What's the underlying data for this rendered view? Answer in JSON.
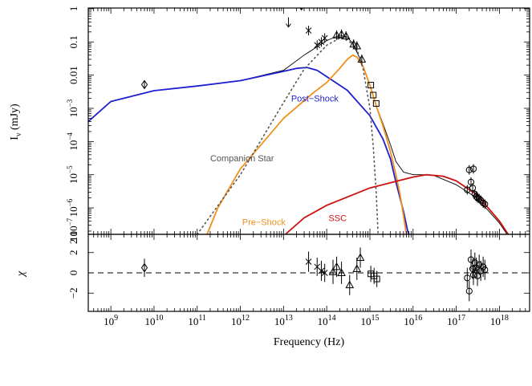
{
  "chart_data": {
    "type": "line",
    "xlabel": "Frequency (Hz)",
    "x_scale": "log",
    "xlim": [
      300000000.0,
      5e+18
    ],
    "x_ticks": [
      1000000000.0,
      10000000000.0,
      100000000000.0,
      1000000000000.0,
      10000000000000.0,
      100000000000000.0,
      1000000000000000.0,
      1e+16,
      1e+17,
      1e+18
    ],
    "x_tick_labels": [
      {
        "base": "10",
        "exp": "9"
      },
      {
        "base": "10",
        "exp": "10"
      },
      {
        "base": "10",
        "exp": "11"
      },
      {
        "base": "10",
        "exp": "12"
      },
      {
        "base": "10",
        "exp": "13"
      },
      {
        "base": "10",
        "exp": "14"
      },
      {
        "base": "10",
        "exp": "15"
      },
      {
        "base": "10",
        "exp": "16"
      },
      {
        "base": "10",
        "exp": "17"
      },
      {
        "base": "10",
        "exp": "18"
      }
    ],
    "top_panel": {
      "ylabel": {
        "main": "I",
        "sub": "ν",
        "unit": "(mJy)"
      },
      "y_scale": "log",
      "ylim": [
        1.6e-07,
        1.05
      ],
      "y_ticks": [
        1,
        0.1,
        0.01,
        0.001,
        0.0001,
        1e-05,
        1e-06,
        2e-07
      ],
      "y_tick_labels": [
        {
          "text": "1"
        },
        {
          "text": "0.1"
        },
        {
          "text": "0.01"
        },
        {
          "base": "10",
          "exp": "−3"
        },
        {
          "base": "10",
          "exp": "−4"
        },
        {
          "base": "10",
          "exp": "−5"
        },
        {
          "base": "10",
          "exp": "−6"
        },
        {
          "base": "2 10",
          "exp": "−7"
        }
      ],
      "series": [
        {
          "label": "Total",
          "color": "#000000",
          "style": "solid",
          "points": [
            [
              300000000.0,
              0.0004
            ],
            [
              1000000000.0,
              0.0016
            ],
            [
              10000000000.0,
              0.0034
            ],
            [
              100000000000.0,
              0.0047
            ],
            [
              1000000000000.0,
              0.0068
            ],
            [
              10000000000000.0,
              0.014
            ],
            [
              30000000000000.0,
              0.04
            ],
            [
              100000000000000.0,
              0.11
            ],
            [
              200000000000000.0,
              0.16
            ],
            [
              300000000000000.0,
              0.14
            ],
            [
              400000000000000.0,
              0.09
            ],
            [
              600000000000000.0,
              0.03
            ],
            [
              1000000000000000.0,
              0.005
            ],
            [
              1400000000000000.0,
              0.0012
            ],
            [
              2000000000000000.0,
              0.00035
            ],
            [
              3000000000000000.0,
              8e-05
            ],
            [
              4000000000000000.0,
              2.5e-05
            ],
            [
              6000000000000000.0,
              1.2e-05
            ],
            [
              1e+16,
              1e-05
            ],
            [
              2e+16,
              1e-05
            ],
            [
              3e+16,
              9.5e-06
            ],
            [
              1e+17,
              5e-06
            ],
            [
              3e+17,
              2e-06
            ],
            [
              1e+18,
              3.5e-07
            ],
            [
              1.5e+18,
              1.6e-07
            ]
          ]
        },
        {
          "label": "Post−Shock",
          "color": "#1f1fd0",
          "style": "solid",
          "points": [
            [
              300000000.0,
              0.0004
            ],
            [
              1000000000.0,
              0.0016
            ],
            [
              10000000000.0,
              0.0034
            ],
            [
              100000000000.0,
              0.0047
            ],
            [
              1000000000000.0,
              0.0068
            ],
            [
              10000000000000.0,
              0.013
            ],
            [
              20000000000000.0,
              0.016
            ],
            [
              35000000000000.0,
              0.017
            ],
            [
              60000000000000.0,
              0.014
            ],
            [
              100000000000000.0,
              0.009
            ],
            [
              300000000000000.0,
              0.0035
            ],
            [
              1000000000000000.0,
              0.0006
            ],
            [
              2000000000000000.0,
              0.00012
            ],
            [
              3000000000000000.0,
              3e-05
            ],
            [
              4000000000000000.0,
              6e-06
            ],
            [
              6000000000000000.0,
              8e-07
            ],
            [
              7500000000000000.0,
              2e-07
            ],
            [
              8000000000000000.0,
              1.6e-07
            ]
          ]
        },
        {
          "label": "Pre−Shock",
          "color": "#f0901a",
          "style": "solid",
          "points": [
            [
              170000000000.0,
              1.6e-07
            ],
            [
              300000000000.0,
              1e-06
            ],
            [
              1000000000000.0,
              1.5e-05
            ],
            [
              10000000000000.0,
              0.0005
            ],
            [
              50000000000000.0,
              0.003
            ],
            [
              100000000000000.0,
              0.006
            ],
            [
              200000000000000.0,
              0.016
            ],
            [
              300000000000000.0,
              0.03
            ],
            [
              400000000000000.0,
              0.04
            ],
            [
              500000000000000.0,
              0.035
            ],
            [
              700000000000000.0,
              0.018
            ],
            [
              1000000000000000.0,
              0.005
            ],
            [
              1400000000000000.0,
              0.0012
            ],
            [
              2000000000000000.0,
              0.0003
            ],
            [
              3000000000000000.0,
              5e-05
            ],
            [
              4000000000000000.0,
              1e-05
            ],
            [
              5000000000000000.0,
              2.5e-06
            ],
            [
              6000000000000000.0,
              6e-07
            ],
            [
              7000000000000000.0,
              1.6e-07
            ]
          ]
        },
        {
          "label": "Companion Star",
          "color": "#555555",
          "style": "dotted",
          "points": [
            [
              100000000000.0,
              1.6e-07
            ],
            [
              1000000000000.0,
              1e-05
            ],
            [
              10000000000000.0,
              0.0015
            ],
            [
              30000000000000.0,
              0.015
            ],
            [
              100000000000000.0,
              0.08
            ],
            [
              200000000000000.0,
              0.13
            ],
            [
              300000000000000.0,
              0.12
            ],
            [
              500000000000000.0,
              0.06
            ],
            [
              700000000000000.0,
              0.015
            ],
            [
              1000000000000000.0,
              0.001
            ],
            [
              1200000000000000.0,
              7e-05
            ],
            [
              1400000000000000.0,
              3e-06
            ],
            [
              1550000000000000.0,
              1.6e-07
            ]
          ]
        },
        {
          "label": "SSC",
          "color": "#cc1111",
          "style": "solid",
          "points": [
            [
              11000000000000.0,
              1.6e-07
            ],
            [
              30000000000000.0,
              5e-07
            ],
            [
              100000000000000.0,
              1.2e-06
            ],
            [
              1000000000000000.0,
              4e-06
            ],
            [
              1e+16,
              8.5e-06
            ],
            [
              2e+16,
              1e-05
            ],
            [
              5e+16,
              9e-06
            ],
            [
              1e+17,
              6.5e-06
            ],
            [
              3e+17,
              2.5e-06
            ],
            [
              1e+18,
              4e-07
            ],
            [
              1.6e+18,
              1.6e-07
            ]
          ]
        }
      ],
      "annotations": [
        {
          "text": "Post−Shock",
          "x": 15000000000000.0,
          "y": 0.0016,
          "color": "#1f1fd0"
        },
        {
          "text": "Companion Star",
          "x": 200000000000.0,
          "y": 2.5e-05,
          "color": "#555555"
        },
        {
          "text": "Pre−Shock",
          "x": 1100000000000.0,
          "y": 3e-07,
          "color": "#f0901a"
        },
        {
          "text": "SSC",
          "x": 110000000000000.0,
          "y": 4e-07,
          "color": "#cc1111"
        }
      ],
      "data_points": [
        {
          "marker": "diamond",
          "x": 6000000000.0,
          "y": 0.0052,
          "ylo": 0.004,
          "yhi": 0.0068
        },
        {
          "marker": "arrow",
          "x": 13000000000000.0,
          "y": 0.55
        },
        {
          "marker": "arrow",
          "x": 26000000000000.0,
          "y": 1.8
        },
        {
          "marker": "cross",
          "x": 38000000000000.0,
          "y": 0.22
        },
        {
          "marker": "cross",
          "x": 60000000000000.0,
          "y": 0.08
        },
        {
          "marker": "cross",
          "x": 75000000000000.0,
          "y": 0.1
        },
        {
          "marker": "cross",
          "x": 90000000000000.0,
          "y": 0.13
        },
        {
          "marker": "triangle",
          "x": 170000000000000.0,
          "y": 0.16
        },
        {
          "marker": "triangle",
          "x": 220000000000000.0,
          "y": 0.17
        },
        {
          "marker": "triangle",
          "x": 280000000000000.0,
          "y": 0.15
        },
        {
          "marker": "triangle",
          "x": 420000000000000.0,
          "y": 0.085
        },
        {
          "marker": "triangle",
          "x": 500000000000000.0,
          "y": 0.075
        },
        {
          "marker": "triangle",
          "x": 650000000000000.0,
          "y": 0.03
        },
        {
          "marker": "square",
          "x": 1050000000000000.0,
          "y": 0.005
        },
        {
          "marker": "square",
          "x": 1200000000000000.0,
          "y": 0.0025
        },
        {
          "marker": "square",
          "x": 1400000000000000.0,
          "y": 0.0014
        },
        {
          "marker": "circle",
          "x": 1.8e+17,
          "y": 3.5e-06
        },
        {
          "marker": "circle",
          "x": 2e+17,
          "y": 1.4e-05
        },
        {
          "marker": "circle",
          "x": 2.2e+17,
          "y": 6e-06
        },
        {
          "marker": "circle",
          "x": 2.4e+17,
          "y": 4e-06
        },
        {
          "marker": "circle",
          "x": 2.5e+17,
          "y": 1.5e-05
        },
        {
          "marker": "circle",
          "x": 2.7e+17,
          "y": 2.6e-06
        },
        {
          "marker": "circle",
          "x": 2.9e+17,
          "y": 2.2e-06
        },
        {
          "marker": "circle",
          "x": 3.1e+17,
          "y": 2e-06
        },
        {
          "marker": "circle",
          "x": 3.4e+17,
          "y": 1.9e-06
        },
        {
          "marker": "circle",
          "x": 3.7e+17,
          "y": 1.7e-06
        },
        {
          "marker": "circle",
          "x": 4.2e+17,
          "y": 1.4e-06
        },
        {
          "marker": "circle",
          "x": 4.6e+17,
          "y": 1.3e-06
        }
      ]
    },
    "bottom_panel": {
      "ylabel": "χ",
      "ylim": [
        -3.8,
        3.8
      ],
      "y_ticks": [
        2,
        0,
        -2
      ],
      "y_tick_labels": [
        "2",
        "0",
        "−2"
      ],
      "top_tick_label": "10",
      "zero_line": "dashed",
      "residuals": [
        {
          "marker": "diamond",
          "x": 6000000000.0,
          "y": 0.5,
          "err": 0.9
        },
        {
          "marker": "cross",
          "x": 38000000000000.0,
          "y": 1.1,
          "err": 1.0
        },
        {
          "marker": "cross",
          "x": 60000000000000.0,
          "y": 0.6,
          "err": 0.9
        },
        {
          "marker": "cross",
          "x": 75000000000000.0,
          "y": 0.2,
          "err": 1.0
        },
        {
          "marker": "cross",
          "x": 90000000000000.0,
          "y": 0.0,
          "err": 0.9
        },
        {
          "marker": "triangle",
          "x": 140000000000000.0,
          "y": 0.1,
          "err": 1.2
        },
        {
          "marker": "triangle",
          "x": 170000000000000.0,
          "y": 0.6,
          "err": 1.0
        },
        {
          "marker": "triangle",
          "x": 220000000000000.0,
          "y": 0.0,
          "err": 1.1
        },
        {
          "marker": "triangle",
          "x": 340000000000000.0,
          "y": -1.2,
          "err": 1.0
        },
        {
          "marker": "triangle",
          "x": 500000000000000.0,
          "y": 0.4,
          "err": 1.1
        },
        {
          "marker": "triangle",
          "x": 600000000000000.0,
          "y": 1.5,
          "err": 1.0
        },
        {
          "marker": "square",
          "x": 1050000000000000.0,
          "y": -0.1,
          "err": 0.8
        },
        {
          "marker": "square",
          "x": 1250000000000000.0,
          "y": -0.3,
          "err": 0.8
        },
        {
          "marker": "square",
          "x": 1450000000000000.0,
          "y": -0.6,
          "err": 0.8
        },
        {
          "marker": "circle",
          "x": 1.8e+17,
          "y": -0.5,
          "err": 1.0
        },
        {
          "marker": "circle",
          "x": 2e+17,
          "y": -1.8,
          "err": 1.0
        },
        {
          "marker": "circle",
          "x": 2.2e+17,
          "y": 1.3,
          "err": 1.0
        },
        {
          "marker": "circle",
          "x": 2.4e+17,
          "y": 0.4,
          "err": 1.0
        },
        {
          "marker": "circle",
          "x": 2.5e+17,
          "y": -0.2,
          "err": 1.0
        },
        {
          "marker": "circle",
          "x": 2.7e+17,
          "y": 1.0,
          "err": 1.0
        },
        {
          "marker": "circle",
          "x": 2.9e+17,
          "y": 0.5,
          "err": 1.0
        },
        {
          "marker": "circle",
          "x": 3.1e+17,
          "y": -0.3,
          "err": 1.0
        },
        {
          "marker": "circle",
          "x": 3.4e+17,
          "y": 0.8,
          "err": 1.0
        },
        {
          "marker": "circle",
          "x": 3.7e+17,
          "y": 0.2,
          "err": 1.0
        },
        {
          "marker": "circle",
          "x": 4.2e+17,
          "y": 0.6,
          "err": 1.0
        },
        {
          "marker": "circle",
          "x": 4.6e+17,
          "y": 0.3,
          "err": 1.0
        }
      ]
    }
  }
}
